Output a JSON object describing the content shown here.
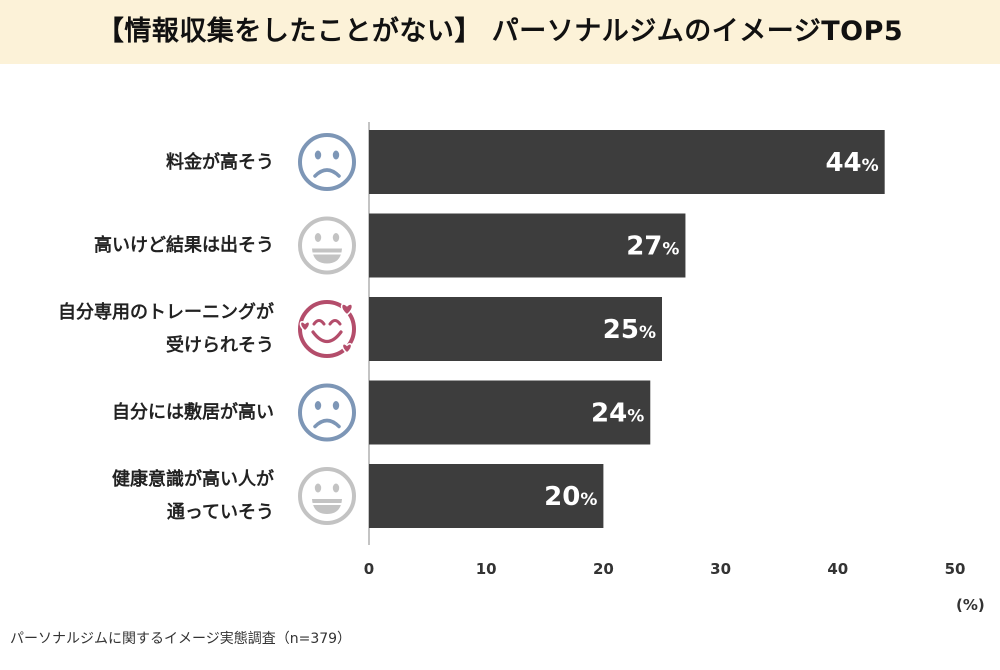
{
  "title": "【情報収集をしたことがない】 パーソナルジムのイメージTOP5",
  "source_note": "パーソナルジムに関するイメージ実態調査（n=379）",
  "chart_data": {
    "type": "bar",
    "orientation": "horizontal",
    "title": "【情報収集をしたことがない】 パーソナルジムのイメージTOP5",
    "categories": [
      [
        "料金が高そう"
      ],
      [
        "高いけど結果は出そう"
      ],
      [
        "自分専用のトレーニングが",
        "受けられそう"
      ],
      [
        "自分には敷居が高い"
      ],
      [
        "健康意識が高い人が",
        "通っていそう"
      ]
    ],
    "values": [
      44,
      27,
      25,
      24,
      20
    ],
    "value_labels": [
      "44",
      "27",
      "25",
      "24",
      "20"
    ],
    "value_unit": "%",
    "icons": [
      "sad-face-icon",
      "grin-face-icon",
      "heart-eyes-smile-icon",
      "sad-face-icon",
      "grin-face-icon"
    ],
    "icon_colors": [
      "#7d96b6",
      "#c3c3c3",
      "#b44d6b",
      "#7d96b6",
      "#c3c3c3"
    ],
    "xlim": [
      0,
      50
    ],
    "xticks": [
      "0",
      "10",
      "20",
      "30",
      "40",
      "50"
    ],
    "x_unit_label": "(%)",
    "grid": false,
    "bar_color": "#3d3d3d"
  }
}
